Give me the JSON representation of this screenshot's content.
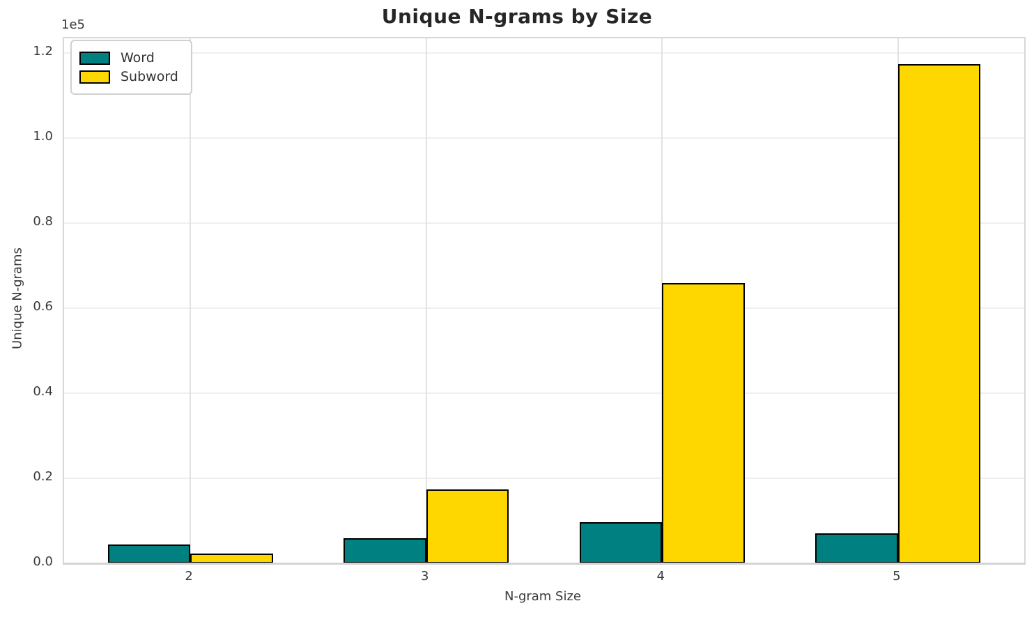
{
  "chart_data": {
    "type": "bar",
    "title": "Unique N-grams by Size",
    "xlabel": "N-gram Size",
    "ylabel": "Unique N-grams",
    "y_offset_text": "1e5",
    "categories": [
      "2",
      "3",
      "4",
      "5"
    ],
    "series": [
      {
        "name": "Word",
        "color": "#008080",
        "values": [
          4400,
          5900,
          9700,
          7000
        ]
      },
      {
        "name": "Subword",
        "color": "#FFD700",
        "values": [
          2300,
          17300,
          65800,
          117400
        ]
      }
    ],
    "bar_edge_color": "#000000",
    "ylim": [
      0,
      123400
    ],
    "yticks": [
      0,
      20000,
      40000,
      60000,
      80000,
      100000,
      120000
    ],
    "ytick_labels": [
      "0.0",
      "0.2",
      "0.4",
      "0.6",
      "0.8",
      "1.0",
      "1.2"
    ],
    "legend": {
      "position": "upper left",
      "entries": [
        "Word",
        "Subword"
      ]
    },
    "grid": true,
    "colors": {
      "background": "#ffffff",
      "grid_horizontal": "#efefef",
      "grid_vertical": "#e2e2e2",
      "spine": "#d8d8d8",
      "tick_text": "#3a3a3a",
      "title_text": "#262626"
    }
  }
}
